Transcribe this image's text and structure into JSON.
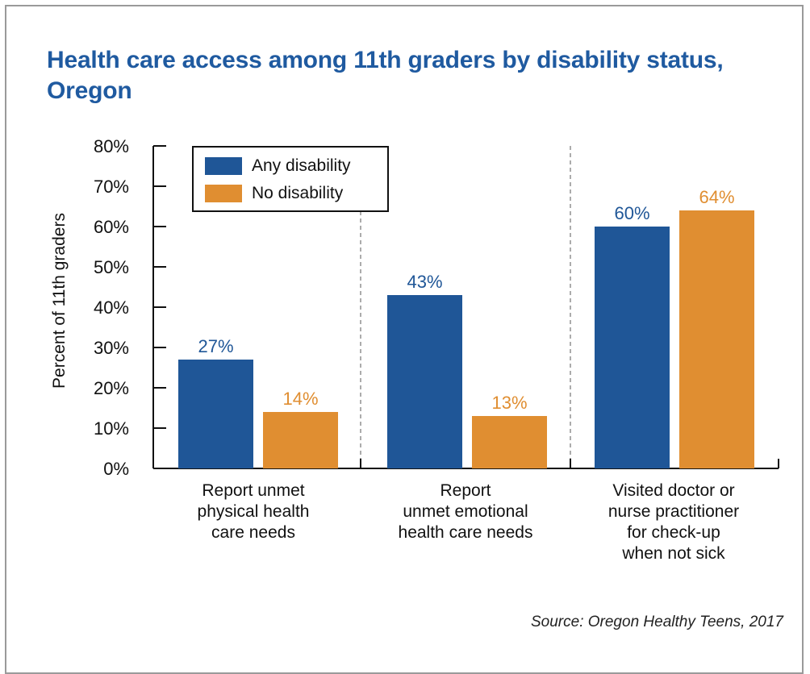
{
  "title": "Health care access among 11th graders by disability status, Oregon",
  "source": "Source: Oregon Healthy Teens, 2017",
  "legend": {
    "items": [
      {
        "label": "Any disability",
        "color": "#1f5697"
      },
      {
        "label": "No disability",
        "color": "#e08e31"
      }
    ]
  },
  "chart_data": {
    "type": "bar",
    "title": "Health care access among 11th graders by disability status, Oregon",
    "ylabel": "Percent of 11th graders",
    "xlabel": "",
    "ylim": [
      0,
      80
    ],
    "yticks": [
      "0%",
      "10%",
      "20%",
      "30%",
      "40%",
      "50%",
      "60%",
      "70%",
      "80%"
    ],
    "categories": [
      "Report unmet\nphysical health\ncare needs",
      "Report\nunmet emotional\nhealth care needs",
      "Visited doctor or\nnurse practitioner\nfor check-up\nwhen not sick"
    ],
    "series": [
      {
        "name": "Any disability",
        "values": [
          27,
          43,
          60
        ],
        "labels": [
          "27%",
          "43%",
          "60%"
        ],
        "color": "#1f5697"
      },
      {
        "name": "No disability",
        "values": [
          14,
          13,
          64
        ],
        "labels": [
          "14%",
          "13%",
          "64%"
        ],
        "color": "#e08e31"
      }
    ],
    "legend_position": "top-left",
    "grid": false,
    "category_dividers": true
  }
}
